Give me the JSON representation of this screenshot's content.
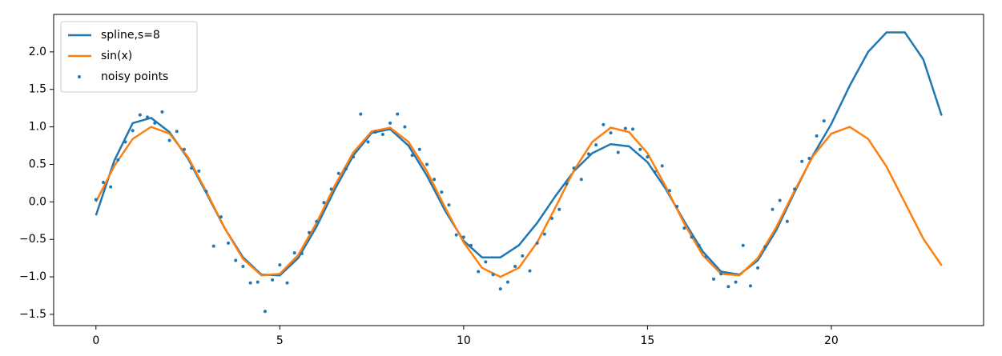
{
  "chart_data": {
    "type": "line",
    "xlim": [
      -1.15,
      24.14
    ],
    "ylim": [
      -1.65,
      2.5
    ],
    "xticks": [
      0,
      5,
      10,
      15,
      20
    ],
    "yticks": [
      {
        "value": -1.5,
        "label": "−1.5"
      },
      {
        "value": -1.0,
        "label": "−1.0"
      },
      {
        "value": -0.5,
        "label": "−0.5"
      },
      {
        "value": 0.0,
        "label": "0.0"
      },
      {
        "value": 0.5,
        "label": "0.5"
      },
      {
        "value": 1.0,
        "label": "1.0"
      },
      {
        "value": 1.5,
        "label": "1.5"
      },
      {
        "value": 2.0,
        "label": "2.0"
      }
    ],
    "legend": "upper left",
    "series": [
      {
        "name": "spline,s=8",
        "color": "#1f77b4",
        "type": "line",
        "x": [
          0,
          0.5,
          1,
          1.5,
          2,
          2.5,
          3,
          3.5,
          4,
          4.5,
          5,
          5.5,
          6,
          6.5,
          7,
          7.5,
          8,
          8.5,
          9,
          9.5,
          10,
          10.5,
          11,
          11.5,
          12,
          12.5,
          13,
          13.5,
          14,
          14.5,
          15,
          15.5,
          16,
          16.5,
          17,
          17.5,
          18,
          18.5,
          19,
          19.5,
          20,
          20.5,
          21,
          21.5,
          22,
          22.5,
          23
        ],
        "values": [
          -0.18,
          0.55,
          1.05,
          1.12,
          0.93,
          0.58,
          0.12,
          -0.35,
          -0.74,
          -0.97,
          -0.98,
          -0.75,
          -0.33,
          0.17,
          0.62,
          0.92,
          0.97,
          0.75,
          0.35,
          -0.12,
          -0.52,
          -0.74,
          -0.74,
          -0.58,
          -0.28,
          0.08,
          0.41,
          0.65,
          0.77,
          0.74,
          0.53,
          0.17,
          -0.26,
          -0.66,
          -0.93,
          -0.97,
          -0.78,
          -0.38,
          0.13,
          0.62,
          1.04,
          1.55,
          2.0,
          2.26,
          2.26,
          1.9,
          1.15
        ]
      },
      {
        "name": "sin(x)",
        "color": "#ff7f0e",
        "type": "line",
        "x": [
          0,
          0.5,
          1,
          1.5,
          2,
          2.5,
          3,
          3.5,
          4,
          4.5,
          5,
          5.5,
          6,
          6.5,
          7,
          7.5,
          8,
          8.5,
          9,
          9.5,
          10,
          10.5,
          11,
          11.5,
          12,
          12.5,
          13,
          13.5,
          14,
          14.5,
          15,
          15.5,
          16,
          16.5,
          17,
          17.5,
          18,
          18.5,
          19,
          19.5,
          20,
          20.5,
          21,
          21.5,
          22,
          22.5,
          23
        ],
        "values": [
          0,
          0.48,
          0.84,
          1.0,
          0.91,
          0.6,
          0.14,
          -0.35,
          -0.76,
          -0.98,
          -0.96,
          -0.71,
          -0.28,
          0.22,
          0.66,
          0.94,
          0.99,
          0.8,
          0.41,
          -0.08,
          -0.54,
          -0.88,
          -1.0,
          -0.88,
          -0.54,
          -0.07,
          0.42,
          0.8,
          0.99,
          0.93,
          0.65,
          0.2,
          -0.29,
          -0.71,
          -0.96,
          -0.98,
          -0.75,
          -0.34,
          0.15,
          0.61,
          0.91,
          1.0,
          0.84,
          0.47,
          -0.01,
          -0.49,
          -0.85
        ]
      },
      {
        "name": "noisy points",
        "color": "#1f77b4",
        "type": "scatter",
        "x": [
          0,
          0.2,
          0.4,
          0.6,
          0.8,
          1.0,
          1.2,
          1.4,
          1.6,
          1.8,
          2.0,
          2.2,
          2.4,
          2.6,
          2.8,
          3.0,
          3.2,
          3.4,
          3.6,
          3.8,
          4.0,
          4.2,
          4.4,
          4.6,
          4.8,
          5.0,
          5.2,
          5.4,
          5.6,
          5.8,
          6.0,
          6.2,
          6.4,
          6.6,
          6.8,
          7.0,
          7.2,
          7.4,
          7.6,
          7.8,
          8.0,
          8.2,
          8.4,
          8.6,
          8.8,
          9.0,
          9.2,
          9.4,
          9.6,
          9.8,
          10.0,
          10.2,
          10.4,
          10.6,
          10.8,
          11.0,
          11.2,
          11.4,
          11.6,
          11.8,
          12.0,
          12.2,
          12.4,
          12.6,
          12.8,
          13.0,
          13.2,
          13.4,
          13.6,
          13.8,
          14.0,
          14.2,
          14.4,
          14.6,
          14.8,
          15.0,
          15.2,
          15.4,
          15.6,
          15.8,
          16.0,
          16.2,
          16.4,
          16.6,
          16.8,
          17.0,
          17.2,
          17.4,
          17.6,
          17.8,
          18.0,
          18.2,
          18.4,
          18.6,
          18.8,
          19.0,
          19.2,
          19.4,
          19.6,
          19.8
        ],
        "values": [
          0.03,
          0.26,
          0.2,
          0.56,
          0.8,
          0.95,
          1.16,
          1.13,
          1.05,
          1.2,
          0.82,
          0.94,
          0.7,
          0.45,
          0.41,
          0.14,
          -0.59,
          -0.2,
          -0.55,
          -0.78,
          -0.86,
          -1.08,
          -1.07,
          -1.46,
          -1.04,
          -0.84,
          -1.08,
          -0.68,
          -0.69,
          -0.41,
          -0.26,
          -0.01,
          0.17,
          0.38,
          0.44,
          0.6,
          1.17,
          0.8,
          0.93,
          0.9,
          1.05,
          1.17,
          1.0,
          0.62,
          0.7,
          0.5,
          0.3,
          0.13,
          -0.04,
          -0.44,
          -0.47,
          -0.58,
          -0.93,
          -0.8,
          -0.97,
          -1.16,
          -1.07,
          -0.86,
          -0.72,
          -0.92,
          -0.55,
          -0.43,
          -0.22,
          -0.1,
          0.24,
          0.45,
          0.3,
          0.64,
          0.76,
          1.03,
          0.92,
          0.66,
          0.98,
          0.97,
          0.7,
          0.6,
          0.4,
          0.48,
          0.15,
          -0.06,
          -0.35,
          -0.47,
          -0.58,
          -0.73,
          -1.03,
          -0.96,
          -1.13,
          -1.07,
          -0.58,
          -1.12,
          -0.88,
          -0.6,
          -0.1,
          0.02,
          -0.26,
          0.17,
          0.54,
          0.58,
          0.88,
          1.08
        ]
      }
    ]
  }
}
